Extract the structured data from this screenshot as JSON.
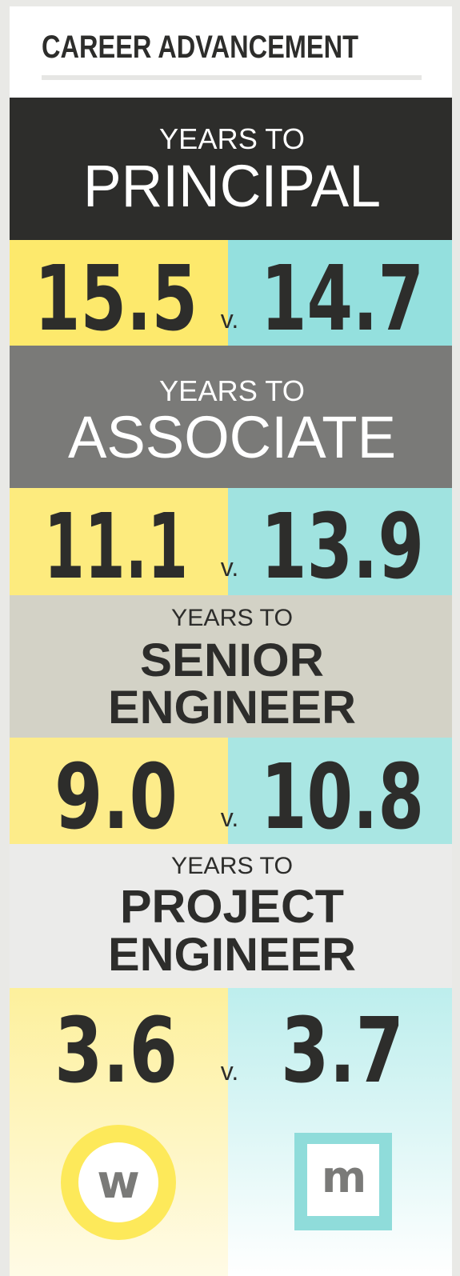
{
  "title": "CAREER ADVANCEMENT",
  "sections": [
    {
      "prefix": "YEARS TO",
      "role": [
        "PRINCIPAL"
      ],
      "left": "15.5",
      "versus": "v.",
      "right": "14.7"
    },
    {
      "prefix": "YEARS TO",
      "role": [
        "ASSOCIATE"
      ],
      "left": "11.1",
      "versus": "v.",
      "right": "13.9"
    },
    {
      "prefix": "YEARS TO",
      "role": [
        "SENIOR",
        "ENGINEER"
      ],
      "left": "9.0",
      "versus": "v.",
      "right": "10.8"
    },
    {
      "prefix": "YEARS TO",
      "role": [
        "PROJECT",
        "ENGINEER"
      ],
      "left": "3.6",
      "versus": "v.",
      "right": "3.7"
    }
  ],
  "icons": {
    "left": "w",
    "right": "m"
  }
}
